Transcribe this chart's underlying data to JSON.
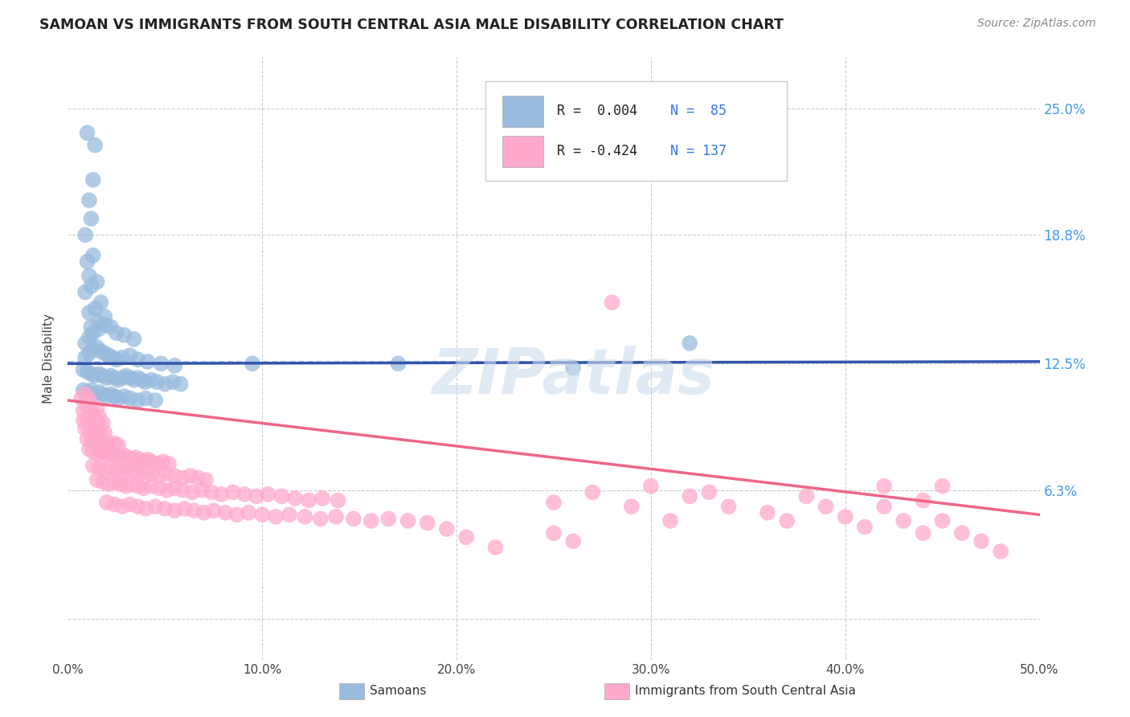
{
  "title": "SAMOAN VS IMMIGRANTS FROM SOUTH CENTRAL ASIA MALE DISABILITY CORRELATION CHART",
  "source": "Source: ZipAtlas.com",
  "ylabel": "Male Disability",
  "y_ticks": [
    0.0,
    0.063,
    0.125,
    0.188,
    0.25
  ],
  "y_tick_labels": [
    "",
    "6.3%",
    "12.5%",
    "18.8%",
    "25.0%"
  ],
  "x_range": [
    0.0,
    0.5
  ],
  "y_range": [
    -0.02,
    0.275
  ],
  "legend_r_blue": "R =  0.004",
  "legend_n_blue": "N =  85",
  "legend_r_pink": "R = -0.424",
  "legend_n_pink": "N = 137",
  "blue_color": "#99BBDD",
  "pink_color": "#FFAACC",
  "blue_line_color": "#3355AA",
  "pink_line_color": "#EE6688",
  "dashed_line_color": "#AACCEE",
  "watermark": "ZIPatlas",
  "blue_scatter": [
    [
      0.01,
      0.238
    ],
    [
      0.014,
      0.232
    ],
    [
      0.011,
      0.205
    ],
    [
      0.013,
      0.215
    ],
    [
      0.009,
      0.188
    ],
    [
      0.012,
      0.196
    ],
    [
      0.01,
      0.175
    ],
    [
      0.013,
      0.178
    ],
    [
      0.011,
      0.168
    ],
    [
      0.009,
      0.16
    ],
    [
      0.012,
      0.163
    ],
    [
      0.015,
      0.165
    ],
    [
      0.011,
      0.15
    ],
    [
      0.014,
      0.152
    ],
    [
      0.017,
      0.155
    ],
    [
      0.012,
      0.143
    ],
    [
      0.016,
      0.145
    ],
    [
      0.019,
      0.148
    ],
    [
      0.009,
      0.135
    ],
    [
      0.011,
      0.138
    ],
    [
      0.013,
      0.14
    ],
    [
      0.016,
      0.142
    ],
    [
      0.019,
      0.144
    ],
    [
      0.022,
      0.143
    ],
    [
      0.025,
      0.14
    ],
    [
      0.029,
      0.139
    ],
    [
      0.034,
      0.137
    ],
    [
      0.009,
      0.128
    ],
    [
      0.011,
      0.13
    ],
    [
      0.013,
      0.132
    ],
    [
      0.015,
      0.133
    ],
    [
      0.017,
      0.131
    ],
    [
      0.019,
      0.13
    ],
    [
      0.021,
      0.129
    ],
    [
      0.023,
      0.128
    ],
    [
      0.025,
      0.127
    ],
    [
      0.028,
      0.128
    ],
    [
      0.032,
      0.129
    ],
    [
      0.036,
      0.127
    ],
    [
      0.041,
      0.126
    ],
    [
      0.048,
      0.125
    ],
    [
      0.055,
      0.124
    ],
    [
      0.008,
      0.122
    ],
    [
      0.01,
      0.121
    ],
    [
      0.012,
      0.12
    ],
    [
      0.014,
      0.119
    ],
    [
      0.016,
      0.12
    ],
    [
      0.018,
      0.119
    ],
    [
      0.02,
      0.118
    ],
    [
      0.022,
      0.119
    ],
    [
      0.024,
      0.118
    ],
    [
      0.026,
      0.117
    ],
    [
      0.028,
      0.118
    ],
    [
      0.03,
      0.119
    ],
    [
      0.032,
      0.118
    ],
    [
      0.034,
      0.117
    ],
    [
      0.036,
      0.118
    ],
    [
      0.038,
      0.117
    ],
    [
      0.04,
      0.116
    ],
    [
      0.043,
      0.117
    ],
    [
      0.046,
      0.116
    ],
    [
      0.05,
      0.115
    ],
    [
      0.054,
      0.116
    ],
    [
      0.058,
      0.115
    ],
    [
      0.008,
      0.112
    ],
    [
      0.01,
      0.111
    ],
    [
      0.012,
      0.112
    ],
    [
      0.014,
      0.11
    ],
    [
      0.016,
      0.111
    ],
    [
      0.018,
      0.11
    ],
    [
      0.02,
      0.109
    ],
    [
      0.022,
      0.11
    ],
    [
      0.024,
      0.109
    ],
    [
      0.026,
      0.108
    ],
    [
      0.029,
      0.109
    ],
    [
      0.032,
      0.108
    ],
    [
      0.036,
      0.107
    ],
    [
      0.04,
      0.108
    ],
    [
      0.045,
      0.107
    ],
    [
      0.095,
      0.125
    ],
    [
      0.17,
      0.125
    ],
    [
      0.26,
      0.123
    ],
    [
      0.32,
      0.135
    ]
  ],
  "pink_scatter": [
    [
      0.007,
      0.108
    ],
    [
      0.009,
      0.11
    ],
    [
      0.011,
      0.107
    ],
    [
      0.008,
      0.102
    ],
    [
      0.01,
      0.104
    ],
    [
      0.012,
      0.101
    ],
    [
      0.013,
      0.1
    ],
    [
      0.015,
      0.103
    ],
    [
      0.016,
      0.099
    ],
    [
      0.008,
      0.097
    ],
    [
      0.01,
      0.098
    ],
    [
      0.012,
      0.096
    ],
    [
      0.014,
      0.097
    ],
    [
      0.016,
      0.095
    ],
    [
      0.018,
      0.096
    ],
    [
      0.009,
      0.093
    ],
    [
      0.011,
      0.092
    ],
    [
      0.013,
      0.091
    ],
    [
      0.015,
      0.092
    ],
    [
      0.017,
      0.09
    ],
    [
      0.019,
      0.091
    ],
    [
      0.01,
      0.088
    ],
    [
      0.012,
      0.087
    ],
    [
      0.014,
      0.088
    ],
    [
      0.016,
      0.086
    ],
    [
      0.018,
      0.087
    ],
    [
      0.02,
      0.086
    ],
    [
      0.022,
      0.085
    ],
    [
      0.024,
      0.086
    ],
    [
      0.026,
      0.085
    ],
    [
      0.011,
      0.083
    ],
    [
      0.013,
      0.082
    ],
    [
      0.015,
      0.081
    ],
    [
      0.017,
      0.082
    ],
    [
      0.019,
      0.081
    ],
    [
      0.021,
      0.08
    ],
    [
      0.023,
      0.081
    ],
    [
      0.025,
      0.08
    ],
    [
      0.027,
      0.079
    ],
    [
      0.029,
      0.08
    ],
    [
      0.031,
      0.079
    ],
    [
      0.033,
      0.078
    ],
    [
      0.035,
      0.079
    ],
    [
      0.037,
      0.078
    ],
    [
      0.039,
      0.077
    ],
    [
      0.041,
      0.078
    ],
    [
      0.043,
      0.077
    ],
    [
      0.046,
      0.076
    ],
    [
      0.049,
      0.077
    ],
    [
      0.052,
      0.076
    ],
    [
      0.013,
      0.075
    ],
    [
      0.016,
      0.074
    ],
    [
      0.019,
      0.073
    ],
    [
      0.022,
      0.074
    ],
    [
      0.025,
      0.073
    ],
    [
      0.028,
      0.072
    ],
    [
      0.031,
      0.073
    ],
    [
      0.034,
      0.072
    ],
    [
      0.037,
      0.071
    ],
    [
      0.04,
      0.072
    ],
    [
      0.043,
      0.071
    ],
    [
      0.047,
      0.07
    ],
    [
      0.051,
      0.071
    ],
    [
      0.055,
      0.07
    ],
    [
      0.059,
      0.069
    ],
    [
      0.063,
      0.07
    ],
    [
      0.067,
      0.069
    ],
    [
      0.071,
      0.068
    ],
    [
      0.015,
      0.068
    ],
    [
      0.018,
      0.067
    ],
    [
      0.021,
      0.066
    ],
    [
      0.024,
      0.067
    ],
    [
      0.027,
      0.066
    ],
    [
      0.03,
      0.065
    ],
    [
      0.033,
      0.066
    ],
    [
      0.036,
      0.065
    ],
    [
      0.039,
      0.064
    ],
    [
      0.043,
      0.065
    ],
    [
      0.047,
      0.064
    ],
    [
      0.051,
      0.063
    ],
    [
      0.055,
      0.064
    ],
    [
      0.059,
      0.063
    ],
    [
      0.064,
      0.062
    ],
    [
      0.069,
      0.063
    ],
    [
      0.074,
      0.062
    ],
    [
      0.079,
      0.061
    ],
    [
      0.085,
      0.062
    ],
    [
      0.091,
      0.061
    ],
    [
      0.097,
      0.06
    ],
    [
      0.103,
      0.061
    ],
    [
      0.11,
      0.06
    ],
    [
      0.117,
      0.059
    ],
    [
      0.124,
      0.058
    ],
    [
      0.131,
      0.059
    ],
    [
      0.139,
      0.058
    ],
    [
      0.02,
      0.057
    ],
    [
      0.024,
      0.056
    ],
    [
      0.028,
      0.055
    ],
    [
      0.032,
      0.056
    ],
    [
      0.036,
      0.055
    ],
    [
      0.04,
      0.054
    ],
    [
      0.045,
      0.055
    ],
    [
      0.05,
      0.054
    ],
    [
      0.055,
      0.053
    ],
    [
      0.06,
      0.054
    ],
    [
      0.065,
      0.053
    ],
    [
      0.07,
      0.052
    ],
    [
      0.075,
      0.053
    ],
    [
      0.081,
      0.052
    ],
    [
      0.087,
      0.051
    ],
    [
      0.093,
      0.052
    ],
    [
      0.1,
      0.051
    ],
    [
      0.107,
      0.05
    ],
    [
      0.114,
      0.051
    ],
    [
      0.122,
      0.05
    ],
    [
      0.13,
      0.049
    ],
    [
      0.138,
      0.05
    ],
    [
      0.147,
      0.049
    ],
    [
      0.156,
      0.048
    ],
    [
      0.165,
      0.049
    ],
    [
      0.175,
      0.048
    ],
    [
      0.185,
      0.047
    ],
    [
      0.25,
      0.057
    ],
    [
      0.28,
      0.155
    ],
    [
      0.3,
      0.065
    ],
    [
      0.32,
      0.06
    ],
    [
      0.34,
      0.055
    ],
    [
      0.36,
      0.052
    ],
    [
      0.37,
      0.048
    ],
    [
      0.38,
      0.06
    ],
    [
      0.39,
      0.055
    ],
    [
      0.4,
      0.05
    ],
    [
      0.41,
      0.045
    ],
    [
      0.42,
      0.055
    ],
    [
      0.43,
      0.048
    ],
    [
      0.44,
      0.042
    ],
    [
      0.45,
      0.048
    ],
    [
      0.46,
      0.042
    ],
    [
      0.47,
      0.038
    ],
    [
      0.48,
      0.033
    ],
    [
      0.42,
      0.065
    ],
    [
      0.44,
      0.058
    ],
    [
      0.45,
      0.065
    ],
    [
      0.25,
      0.042
    ],
    [
      0.26,
      0.038
    ],
    [
      0.27,
      0.062
    ],
    [
      0.29,
      0.055
    ],
    [
      0.31,
      0.048
    ],
    [
      0.33,
      0.062
    ],
    [
      0.195,
      0.044
    ],
    [
      0.205,
      0.04
    ],
    [
      0.22,
      0.035
    ]
  ],
  "blue_trend_x": [
    0.0,
    0.5
  ],
  "blue_trend_y": [
    0.125,
    0.126
  ],
  "pink_trend_x": [
    0.0,
    0.5
  ],
  "pink_trend_y": [
    0.107,
    0.051
  ],
  "dashed_line_x": [
    0.0,
    0.37
  ],
  "dashed_line_y": [
    0.126,
    0.126
  ]
}
